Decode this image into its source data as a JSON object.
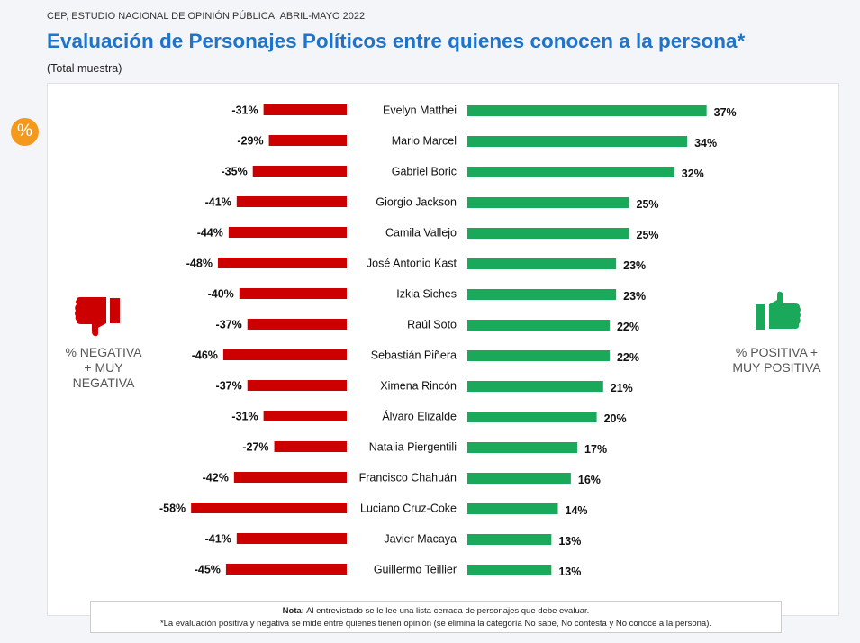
{
  "header": {
    "source": "CEP, ESTUDIO NACIONAL DE OPINIÓN PÚBLICA, ABRIL-MAYO 2022",
    "title": "Evaluación de Personajes Políticos entre quienes conocen a la persona*",
    "subtitle": "(Total muestra)"
  },
  "badge": {
    "icon": "percent-icon",
    "text": "%",
    "color": "#f39a1e"
  },
  "legend": {
    "negative": {
      "label_lines": [
        "% NEGATIVA",
        "+ MUY",
        "NEGATIVA"
      ],
      "icon": "thumbs-down-icon",
      "color": "#cc0000"
    },
    "positive": {
      "label_lines": [
        "% POSITIVA +",
        "MUY POSITIVA"
      ],
      "icon": "thumbs-up-icon",
      "color": "#1aa95a"
    }
  },
  "note": {
    "bold": "Nota:",
    "line1": " Al entrevistado se le lee una lista cerrada de personajes que debe evaluar.",
    "line2": "*La evaluación positiva y negativa se mide entre quienes tienen opinión (se elimina la categoría No sabe, No contesta y No conoce a la persona)."
  },
  "chart_data": {
    "type": "bar",
    "orientation": "horizontal-diverging",
    "title": "Evaluación de Personajes Políticos entre quienes conocen a la persona*",
    "categories": [
      "Evelyn Matthei",
      "Mario Marcel",
      "Gabriel Boric",
      "Giorgio Jackson",
      "Camila Vallejo",
      "José Antonio Kast",
      "Izkia Siches",
      "Raúl Soto",
      "Sebastián Piñera",
      "Ximena Rincón",
      "Álvaro Elizalde",
      "Natalia Piergentili",
      "Francisco Chahuán",
      "Luciano Cruz-Coke",
      "Javier Macaya",
      "Guillermo Teillier"
    ],
    "series": [
      {
        "name": "% NEGATIVA + MUY NEGATIVA",
        "color": "#cc0000",
        "values": [
          -31,
          -29,
          -35,
          -41,
          -44,
          -48,
          -40,
          -37,
          -46,
          -37,
          -31,
          -27,
          -42,
          -58,
          -41,
          -45
        ]
      },
      {
        "name": "% POSITIVA + MUY POSITIVA",
        "color": "#1aa95a",
        "values": [
          37,
          34,
          32,
          25,
          25,
          23,
          23,
          22,
          22,
          21,
          20,
          17,
          16,
          14,
          13,
          13
        ]
      }
    ],
    "value_suffix": "%",
    "grid": false,
    "legend": "left-and-right"
  }
}
